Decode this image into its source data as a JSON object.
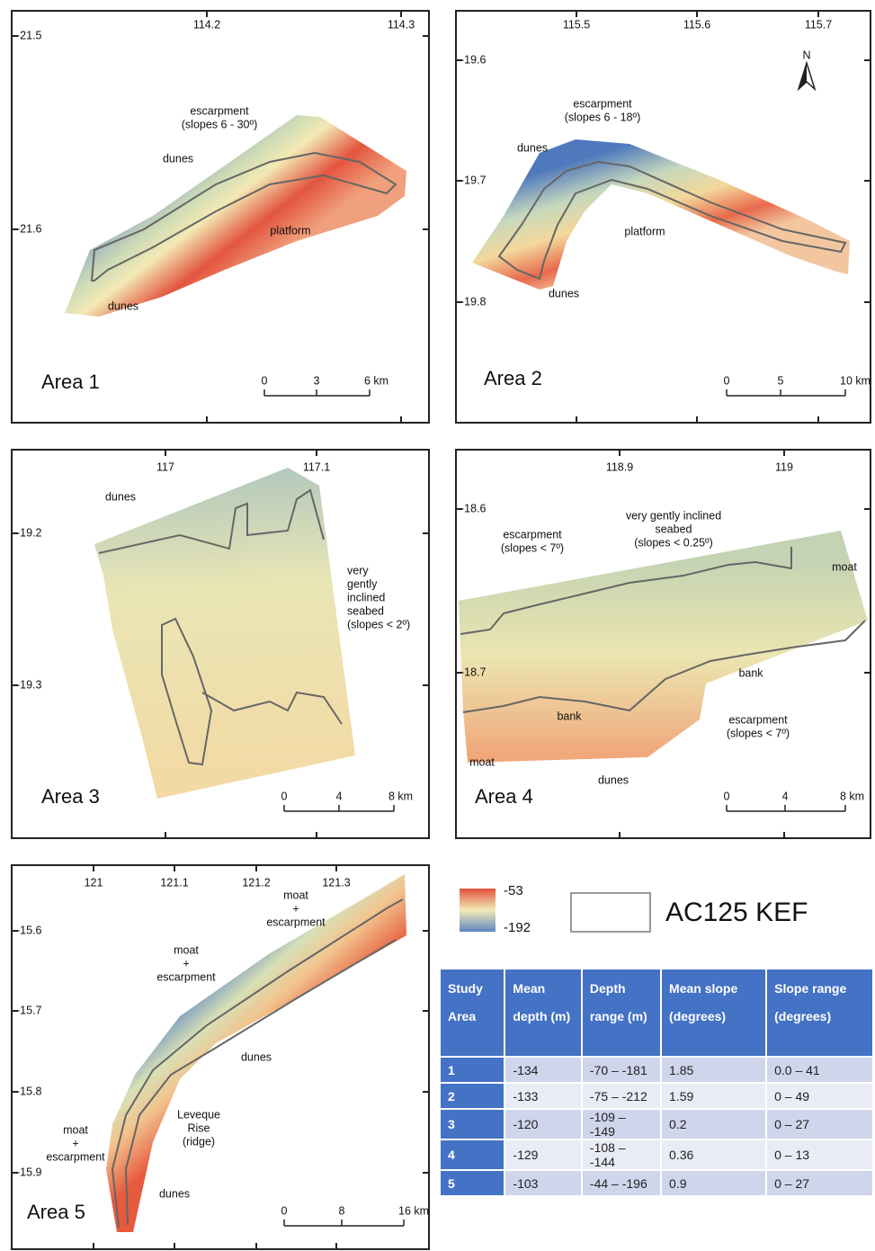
{
  "panels": [
    {
      "title": "Area 1",
      "x_ticks": [
        "114.2",
        "114.3"
      ],
      "y_ticks": [
        "-21.5",
        "-21.6"
      ],
      "annotations": [
        [
          "escarpment",
          "(slopes 6 - 30º)"
        ],
        [
          "dunes"
        ],
        [
          "platform"
        ],
        [
          "dunes"
        ]
      ],
      "scale": [
        "0",
        "3",
        "6 km"
      ]
    },
    {
      "title": "Area 2",
      "x_ticks": [
        "115.5",
        "115.6",
        "115.7"
      ],
      "y_ticks": [
        "-19.6",
        "-19.7",
        "-19.8"
      ],
      "north": "N",
      "annotations": [
        [
          "escarpment",
          "(slopes 6 - 18º)"
        ],
        [
          "dunes"
        ],
        [
          "platform"
        ],
        [
          "dunes"
        ]
      ],
      "scale": [
        "0",
        "5",
        "10 km"
      ]
    },
    {
      "title": "Area 3",
      "x_ticks": [
        "117",
        "117.1"
      ],
      "y_ticks": [
        "-19.2",
        "-19.3"
      ],
      "annotations": [
        [
          "dunes"
        ],
        [
          "very",
          "gently",
          "inclined",
          "seabed",
          "(slopes < 2º)"
        ]
      ],
      "scale": [
        "0",
        "4",
        "8 km"
      ]
    },
    {
      "title": "Area 4",
      "x_ticks": [
        "118.9",
        "119"
      ],
      "y_ticks": [
        "-18.6",
        "-18.7"
      ],
      "annotations": [
        [
          "escarpment",
          "(slopes < 7º)"
        ],
        [
          "very gently inclined",
          "seabed",
          "(slopes < 0.25º)"
        ],
        [
          "moat"
        ],
        [
          "bank"
        ],
        [
          "bank"
        ],
        [
          "escarpment",
          "(slopes < 7º)"
        ],
        [
          "moat"
        ],
        [
          "dunes"
        ]
      ],
      "scale": [
        "0",
        "4",
        "8 km"
      ]
    },
    {
      "title": "Area 5",
      "x_ticks": [
        "121",
        "121.1",
        "121.2",
        "121.3"
      ],
      "y_ticks": [
        "-15.6",
        "-15.7",
        "-15.8",
        "-15.9"
      ],
      "annotations": [
        [
          "moat",
          "+",
          "escarpment"
        ],
        [
          "moat",
          "+",
          "escarpment"
        ],
        [
          "dunes"
        ],
        [
          "Leveque",
          "Rise",
          "(ridge)"
        ],
        [
          "moat",
          "+",
          "escarpment"
        ],
        [
          "dunes"
        ]
      ],
      "scale": [
        "0",
        "8",
        "16 km"
      ]
    }
  ],
  "legend": {
    "max": "-53",
    "min": "-192",
    "outline": "AC125 KEF"
  },
  "table": {
    "header": [
      "Study Area",
      "Mean depth (m)",
      "Depth range (m)",
      "Mean slope (degrees)",
      "Slope range (degrees)"
    ],
    "rows": [
      [
        "1",
        "-134",
        "-70 – -181",
        "1.85",
        "0.0 – 41"
      ],
      [
        "2",
        "-133",
        "-75 – -212",
        "1.59",
        "0 – 49"
      ],
      [
        "3",
        "-120",
        "-109 – -149",
        "0.2",
        "0 – 27"
      ],
      [
        "4",
        "-129",
        "-108 – -144",
        "0.36",
        "0 – 13"
      ],
      [
        "5",
        "-103",
        "-44 – -196",
        "0.9",
        "0 – 27"
      ]
    ]
  }
}
